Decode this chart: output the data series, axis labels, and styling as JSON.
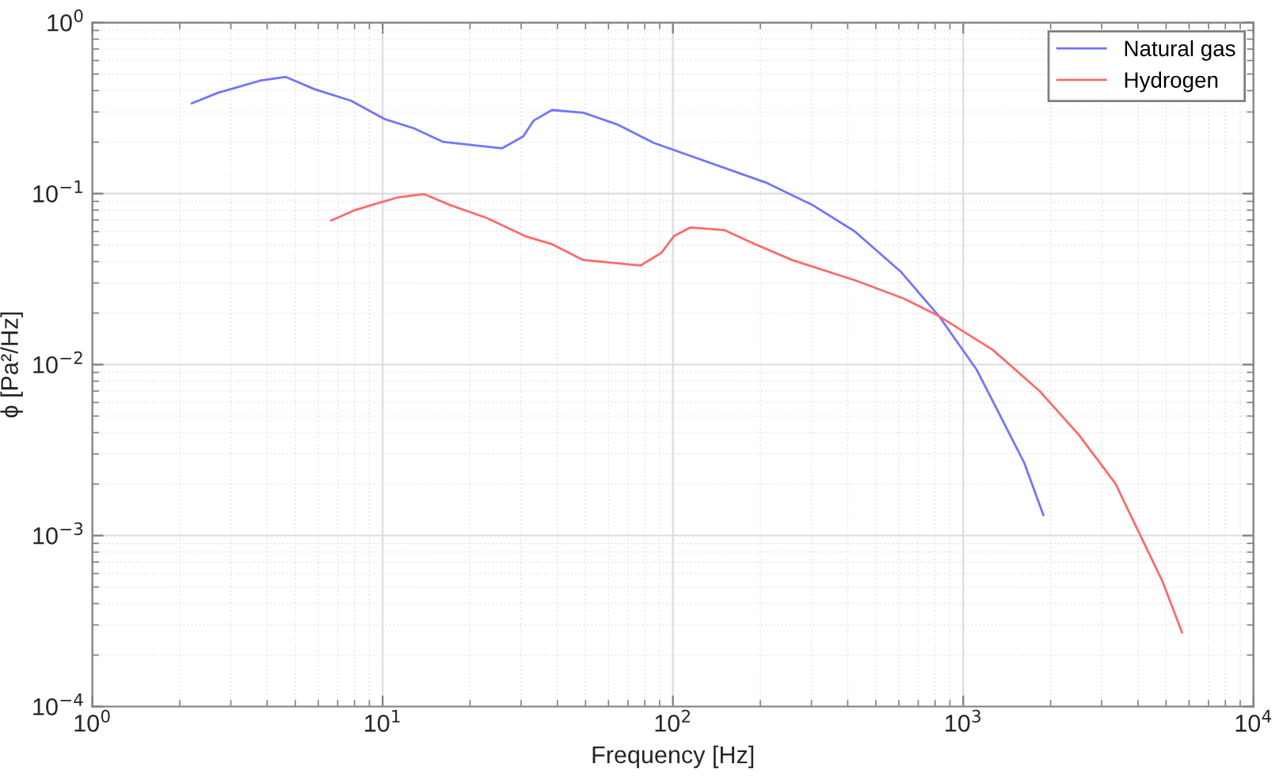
{
  "chart_data": {
    "type": "line",
    "xlabel": "Frequency [Hz]",
    "ylabel": "ϕ [Pa²/Hz]",
    "log": "xy",
    "grid": true,
    "legend": "top right",
    "line_style": "solid",
    "marker": "none",
    "xlim": [
      1,
      10000
    ],
    "ylim": [
      0.0001,
      1
    ],
    "xticks": [
      {
        "value": 1,
        "label": "10$^{0}$"
      },
      {
        "value": 10,
        "label": "10$^{1}$"
      },
      {
        "value": 100,
        "label": "10$^{2}$"
      },
      {
        "value": 1000,
        "label": "10$^{3}$"
      },
      {
        "value": 10000,
        "label": "10$^{4}$"
      }
    ],
    "yticks": [
      {
        "value": 0.0001,
        "label": "10$^{−4}$"
      },
      {
        "value": 0.001,
        "label": "10$^{−3}$"
      },
      {
        "value": 0.01,
        "label": "10$^{−2}$"
      },
      {
        "value": 0.1,
        "label": "10$^{−1}$"
      },
      {
        "value": 1,
        "label": "10$^{0}$"
      }
    ],
    "series": [
      {
        "name": "Natural gas",
        "color": "#7373ff",
        "x": [
          2.2,
          2.71,
          3.13,
          3.77,
          4.64,
          5.82,
          7.78,
          10.2,
          12.8,
          16.1,
          25.8,
          30.5,
          33.1,
          38.3,
          49.1,
          64.2,
          85.9,
          209,
          303,
          422,
          612,
          825,
          1114,
          1620,
          1888
        ],
        "values": [
          0.337,
          0.389,
          0.417,
          0.457,
          0.481,
          0.408,
          0.349,
          0.272,
          0.241,
          0.201,
          0.184,
          0.216,
          0.267,
          0.308,
          0.297,
          0.254,
          0.198,
          0.116,
          0.0856,
          0.0603,
          0.0347,
          0.0192,
          0.0093,
          0.00268,
          0.00132
        ]
      },
      {
        "name": "Hydrogen",
        "color": "#ff6a6a",
        "x": [
          6.65,
          7.95,
          9.37,
          11.3,
          13.9,
          17.1,
          22.8,
          31.1,
          38.3,
          49.1,
          77.4,
          91.3,
          101,
          115,
          150,
          192,
          257,
          431,
          625,
          825,
          1263,
          1833,
          2500,
          3342,
          4850,
          5670
        ],
        "values": [
          0.0696,
          0.0796,
          0.0867,
          0.0951,
          0.0993,
          0.0856,
          0.0721,
          0.0562,
          0.0506,
          0.0409,
          0.038,
          0.0451,
          0.0566,
          0.0634,
          0.0612,
          0.0506,
          0.0409,
          0.0308,
          0.0243,
          0.0192,
          0.0122,
          0.007,
          0.00389,
          0.00202,
          0.000543,
          0.000272
        ]
      }
    ]
  }
}
